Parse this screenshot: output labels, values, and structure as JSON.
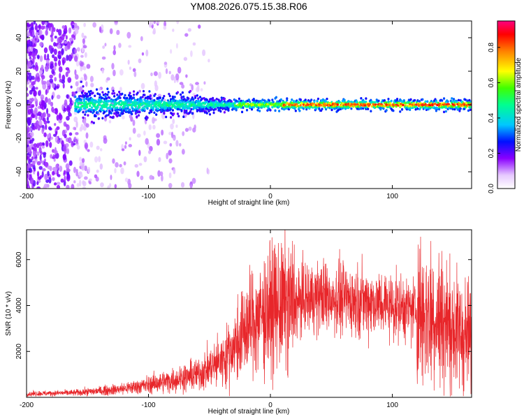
{
  "colors": {
    "background": "#ffffff",
    "snr_line": "#e8262a",
    "axis": "#000000"
  },
  "chart_data": [
    {
      "type": "heatmap",
      "title": "YM08.2026.075.15.38.R06",
      "xlabel": "Height of straight line (km)",
      "ylabel": "Frequency (Hz)",
      "xlim": [
        -200,
        165
      ],
      "ylim": [
        -50,
        50
      ],
      "xticks": [
        -200,
        -100,
        0,
        100
      ],
      "xtick_labels": [
        "-200",
        "-100",
        "0",
        "100"
      ],
      "yticks": [
        -40,
        -20,
        0,
        20,
        40
      ],
      "ytick_labels": [
        "-40",
        "-20",
        "0",
        "20",
        "40"
      ],
      "colorbar": {
        "label": "Normalized spectral amplitude",
        "range": [
          0.0,
          0.95
        ],
        "ticks": [
          0.0,
          0.2,
          0.4,
          0.6,
          0.8
        ],
        "tick_labels": [
          "0.0",
          "0.2",
          "0.4",
          "0.6",
          "0.8"
        ],
        "colormap": "rainbow"
      },
      "description_points": {
        "scattered_noise_region_km": [
          -200,
          -150
        ],
        "signal_band_frequency_hz": 0,
        "band_halfwidth_hz": [
          [
            -150,
            8
          ],
          [
            -60,
            5
          ],
          [
            -30,
            3
          ],
          [
            165,
            3
          ]
        ],
        "peak_amplitude_region_km": [
          10,
          120
        ]
      }
    },
    {
      "type": "line",
      "title": "",
      "xlabel": "Height of straight line (km)",
      "ylabel": "SNR (10 * v/v)",
      "xlim": [
        -200,
        165
      ],
      "ylim": [
        0,
        7300
      ],
      "xticks": [
        -200,
        -100,
        0,
        100
      ],
      "xtick_labels": [
        "-200",
        "-100",
        "0",
        "100"
      ],
      "yticks": [
        2000,
        4000,
        6000
      ],
      "ytick_labels": [
        "2000",
        "4000",
        "6000"
      ],
      "series": [
        {
          "name": "SNR",
          "x": [
            -200,
            -180,
            -160,
            -140,
            -120,
            -100,
            -80,
            -60,
            -50,
            -40,
            -30,
            -20,
            -10,
            0,
            10,
            20,
            30,
            40,
            60,
            80,
            100,
            120,
            130,
            140,
            150,
            160,
            165
          ],
          "values": [
            150,
            180,
            200,
            280,
            380,
            550,
            750,
            1000,
            1300,
            1600,
            2200,
            3000,
            3500,
            3900,
            4000,
            4100,
            4300,
            4400,
            4300,
            4200,
            4000,
            3800,
            3700,
            3400,
            3000,
            2700,
            2600
          ]
        }
      ]
    }
  ]
}
